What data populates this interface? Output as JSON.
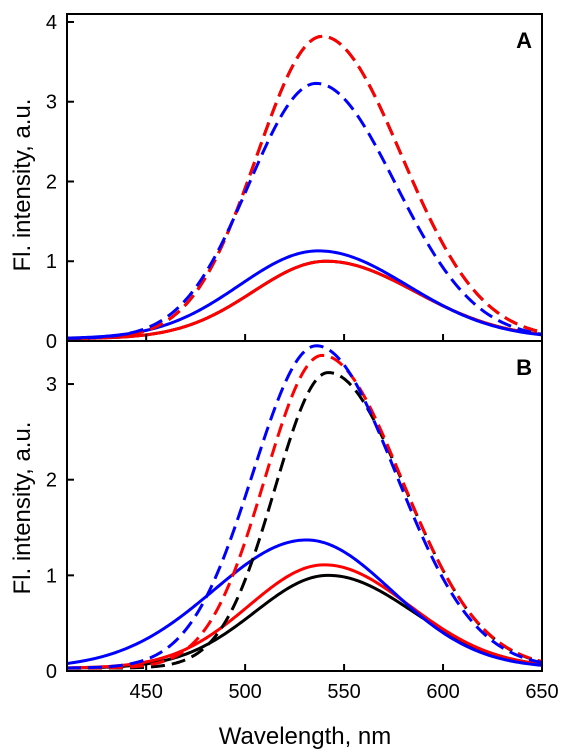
{
  "chart_data": [
    {
      "type": "line",
      "panel_label": "A",
      "xlabel": "Wavelength, nm",
      "ylabel": "Fl. intensity, a.u.",
      "xlim": [
        410,
        650
      ],
      "ylim": [
        0,
        4.1
      ],
      "x_ticks": [
        450,
        500,
        550,
        600,
        650
      ],
      "y_ticks": [
        0,
        1,
        2,
        3,
        4
      ],
      "grid": false,
      "series": [
        {
          "color": "#000000",
          "dash": "solid",
          "peak_x": 541,
          "peak_y": 1.0,
          "sigma_left": 37,
          "sigma_right": 45,
          "baseline": 0.03
        },
        {
          "color": "#ff0000",
          "dash": "solid",
          "peak_x": 541,
          "peak_y": 1.0,
          "sigma_left": 37,
          "sigma_right": 45,
          "baseline": 0.03
        },
        {
          "color": "#0000ff",
          "dash": "solid",
          "peak_x": 537,
          "peak_y": 1.13,
          "sigma_left": 40,
          "sigma_right": 45,
          "baseline": 0.03
        },
        {
          "color": "#000000",
          "dash": "dashed",
          "peak_x": 539,
          "peak_y": 3.82,
          "sigma_left": 33,
          "sigma_right": 40,
          "baseline": 0.03
        },
        {
          "color": "#ff0000",
          "dash": "dashed",
          "peak_x": 539,
          "peak_y": 3.82,
          "sigma_left": 33,
          "sigma_right": 40,
          "baseline": 0.03
        },
        {
          "color": "#0000ff",
          "dash": "dashed",
          "peak_x": 536,
          "peak_y": 3.23,
          "sigma_left": 34,
          "sigma_right": 40,
          "baseline": 0.03
        }
      ]
    },
    {
      "type": "line",
      "panel_label": "B",
      "xlabel": "Wavelength, nm",
      "ylabel": "Fl. intensity, a.u.",
      "xlim": [
        410,
        650
      ],
      "ylim": [
        0,
        3.45
      ],
      "x_ticks": [
        450,
        500,
        550,
        600,
        650
      ],
      "y_ticks": [
        0,
        1,
        2,
        3
      ],
      "grid": false,
      "series": [
        {
          "color": "#000000",
          "dash": "solid",
          "peak_x": 542,
          "peak_y": 1.0,
          "sigma_left": 37,
          "sigma_right": 43,
          "baseline": 0.03
        },
        {
          "color": "#ff0000",
          "dash": "solid",
          "peak_x": 540,
          "peak_y": 1.11,
          "sigma_left": 38,
          "sigma_right": 43,
          "baseline": 0.03
        },
        {
          "color": "#0000ff",
          "dash": "solid",
          "peak_x": 531,
          "peak_y": 1.37,
          "sigma_left": 47,
          "sigma_right": 43,
          "baseline": 0.03
        },
        {
          "color": "#000000",
          "dash": "dashed",
          "peak_x": 542,
          "peak_y": 3.12,
          "sigma_left": 27,
          "sigma_right": 39,
          "baseline": 0.03
        },
        {
          "color": "#ff0000",
          "dash": "dashed",
          "peak_x": 539,
          "peak_y": 3.3,
          "sigma_left": 29,
          "sigma_right": 40,
          "baseline": 0.03
        },
        {
          "color": "#0000ff",
          "dash": "dashed",
          "peak_x": 536,
          "peak_y": 3.4,
          "sigma_left": 32,
          "sigma_right": 40,
          "baseline": 0.03
        }
      ]
    }
  ]
}
